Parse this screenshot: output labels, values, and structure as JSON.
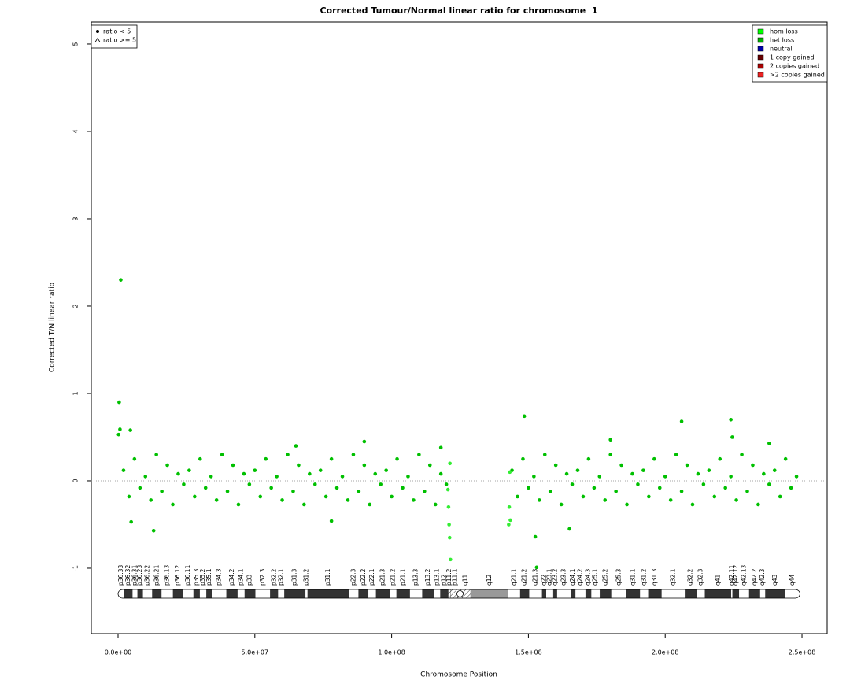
{
  "chart_data": {
    "type": "scatter",
    "title": "Corrected Tumour/Normal linear ratio for chromosome  1",
    "xlabel": "Chromosome Position",
    "ylabel": "Corrected T/N linear ratio",
    "xlim": [
      -9780000,
      259200000
    ],
    "ylim": [
      -1.748,
      5.252
    ],
    "xticks": [
      {
        "value": 0,
        "label": "0.0e+00"
      },
      {
        "value": 50000000,
        "label": "5.0e+07"
      },
      {
        "value": 100000000,
        "label": "1.0e+08"
      },
      {
        "value": 150000000,
        "label": "1.5e+08"
      },
      {
        "value": 200000000,
        "label": "2.0e+08"
      },
      {
        "value": 250000000,
        "label": "2.5e+08"
      }
    ],
    "yticks": [
      -1,
      0,
      1,
      2,
      3,
      4,
      5
    ],
    "hline": 0,
    "series": [
      {
        "color": "#00c000",
        "x": [
          2000000.0,
          4000000.0,
          6000000.0,
          8000000.0,
          10000000.0,
          12000000.0,
          14000000.0,
          16000000.0,
          18000000.0,
          20000000.0,
          22000000.0,
          24000000.0,
          26000000.0,
          28000000.0,
          30000000.0,
          32000000.0,
          34000000.0,
          36000000.0,
          38000000.0,
          40000000.0,
          42000000.0,
          44000000.0,
          46000000.0,
          48000000.0,
          50000000.0,
          52000000.0,
          54000000.0,
          56000000.0,
          58000000.0,
          60000000.0,
          62000000.0,
          64000000.0,
          66000000.0,
          68000000.0,
          70000000.0,
          72000000.0,
          74000000.0,
          76000000.0,
          78000000.0,
          80000000.0,
          82000000.0,
          84000000.0,
          86000000.0,
          88000000.0,
          90000000.0,
          92000000.0,
          94000000.0,
          96000000.0,
          98000000.0,
          100000000.0,
          102000000.0,
          104000000.0,
          106000000.0,
          108000000.0,
          110000000.0,
          112000000.0,
          114000000.0,
          116000000.0,
          118000000.0,
          120000000.0,
          144000000.0,
          146000000.0,
          148000000.0,
          150000000.0,
          152000000.0,
          154000000.0,
          156000000.0,
          158000000.0,
          160000000.0,
          162000000.0,
          164000000.0,
          166000000.0,
          168000000.0,
          170000000.0,
          172000000.0,
          174000000.0,
          176000000.0,
          178000000.0,
          180000000.0,
          182000000.0,
          184000000.0,
          186000000.0,
          188000000.0,
          190000000.0,
          192000000.0,
          194000000.0,
          196000000.0,
          198000000.0,
          200000000.0,
          202000000.0,
          204000000.0,
          206000000.0,
          208000000.0,
          210000000.0,
          212000000.0,
          214000000.0,
          216000000.0,
          218000000.0,
          220000000.0,
          222000000.0,
          224000000.0,
          226000000.0,
          228000000.0,
          230000000.0,
          232000000.0,
          234000000.0,
          236000000.0,
          238000000.0,
          240000000.0,
          242000000.0,
          244000000.0,
          246000000.0,
          248000000.0,
          1000000.0,
          400000.0,
          200000.0,
          700000.0,
          4500000.0,
          4800000.0,
          13000000.0,
          78000000.0,
          148500000.0,
          152500000.0,
          153000000.0,
          165000000.0,
          206000000.0,
          224000000.0,
          224500000.0,
          118000000.0,
          65000000.0,
          90000000.0,
          180000000.0,
          238000000.0
        ],
        "values": [
          0.12,
          -0.18,
          0.25,
          -0.08,
          0.05,
          -0.22,
          0.3,
          -0.12,
          0.18,
          -0.27,
          0.08,
          -0.04,
          0.12,
          -0.18,
          0.25,
          -0.08,
          0.05,
          -0.22,
          0.3,
          -0.12,
          0.18,
          -0.27,
          0.08,
          -0.04,
          0.12,
          -0.18,
          0.25,
          -0.08,
          0.05,
          -0.22,
          0.3,
          -0.12,
          0.18,
          -0.27,
          0.08,
          -0.04,
          0.12,
          -0.18,
          0.25,
          -0.08,
          0.05,
          -0.22,
          0.3,
          -0.12,
          0.18,
          -0.27,
          0.08,
          -0.04,
          0.12,
          -0.18,
          0.25,
          -0.08,
          0.05,
          -0.22,
          0.3,
          -0.12,
          0.18,
          -0.27,
          0.08,
          -0.04,
          0.12,
          -0.18,
          0.25,
          -0.08,
          0.05,
          -0.22,
          0.3,
          -0.12,
          0.18,
          -0.27,
          0.08,
          -0.04,
          0.12,
          -0.18,
          0.25,
          -0.08,
          0.05,
          -0.22,
          0.3,
          -0.12,
          0.18,
          -0.27,
          0.08,
          -0.04,
          0.12,
          -0.18,
          0.25,
          -0.08,
          0.05,
          -0.22,
          0.3,
          -0.12,
          0.18,
          -0.27,
          0.08,
          -0.04,
          0.12,
          -0.18,
          0.25,
          -0.08,
          0.05,
          -0.22,
          0.3,
          -0.12,
          0.18,
          -0.27,
          0.08,
          -0.04,
          0.12,
          -0.18,
          0.25,
          -0.08,
          0.05,
          2.3,
          0.9,
          0.53,
          0.59,
          0.58,
          -0.47,
          -0.57,
          -0.46,
          0.74,
          -0.64,
          -0.99,
          -0.55,
          0.68,
          0.7,
          0.5,
          0.38,
          0.4,
          0.45,
          0.47,
          0.43
        ]
      },
      {
        "color": "#33ee33",
        "x": [
          120600000.0,
          120800000.0,
          121000000.0,
          121200000.0,
          121300000.0,
          121500000.0,
          142800000.0,
          143000000.0,
          143200000.0,
          143400000.0
        ],
        "values": [
          -0.1,
          -0.3,
          -0.5,
          -0.65,
          0.2,
          -0.9,
          -0.5,
          -0.3,
          0.1,
          -0.45
        ]
      }
    ],
    "shape_legend": {
      "items": [
        {
          "label": "ratio < 5",
          "symbol": "circle"
        },
        {
          "label": "ratio >= 5",
          "symbol": "triangle"
        }
      ]
    },
    "state_legend": {
      "items": [
        {
          "label": "hom loss",
          "color": "#00ff00"
        },
        {
          "label": "het loss",
          "color": "#00b000"
        },
        {
          "label": "neutral",
          "color": "#0000aa"
        },
        {
          "label": "1 copy gained",
          "color": "#660000"
        },
        {
          "label": "2 copies gained",
          "color": "#aa0000"
        },
        {
          "label": ">2 copies gained",
          "color": "#ee2222"
        }
      ]
    },
    "ideogram": {
      "bands": [
        {
          "label": "p36.33",
          "start": 0,
          "end": 2300000.0,
          "stain": "gneg"
        },
        {
          "label": "p36.32",
          "start": 2300000.0,
          "end": 5300000.0,
          "stain": "gpos"
        },
        {
          "label": "p36.31",
          "start": 5300000.0,
          "end": 7100000.0,
          "stain": "gneg"
        },
        {
          "label": "p36.23",
          "start": 7100000.0,
          "end": 9100000.0,
          "stain": "gpos"
        },
        {
          "label": "p36.22",
          "start": 9100000.0,
          "end": 12500000.0,
          "stain": "gneg"
        },
        {
          "label": "p36.21",
          "start": 12500000.0,
          "end": 15900000.0,
          "stain": "gpos"
        },
        {
          "label": "p36.13",
          "start": 15900000.0,
          "end": 20100000.0,
          "stain": "gneg"
        },
        {
          "label": "p36.12",
          "start": 20100000.0,
          "end": 23600000.0,
          "stain": "gpos"
        },
        {
          "label": "p36.11",
          "start": 23600000.0,
          "end": 27600000.0,
          "stain": "gneg"
        },
        {
          "label": "p35.3",
          "start": 27600000.0,
          "end": 29900000.0,
          "stain": "gpos"
        },
        {
          "label": "p35.2",
          "start": 29900000.0,
          "end": 32300000.0,
          "stain": "gneg"
        },
        {
          "label": "p35.1",
          "start": 32300000.0,
          "end": 34300000.0,
          "stain": "gpos"
        },
        {
          "label": "p34.3",
          "start": 34300000.0,
          "end": 39600000.0,
          "stain": "gneg"
        },
        {
          "label": "p34.2",
          "start": 39600000.0,
          "end": 43700000.0,
          "stain": "gpos"
        },
        {
          "label": "p34.1",
          "start": 43700000.0,
          "end": 46300000.0,
          "stain": "gneg"
        },
        {
          "label": "p33",
          "start": 46300000.0,
          "end": 50200000.0,
          "stain": "gpos"
        },
        {
          "label": "p32.3",
          "start": 50200000.0,
          "end": 55600000.0,
          "stain": "gneg"
        },
        {
          "label": "p32.2",
          "start": 55600000.0,
          "end": 58500000.0,
          "stain": "gpos"
        },
        {
          "label": "p32.1",
          "start": 58500000.0,
          "end": 60800000.0,
          "stain": "gneg"
        },
        {
          "label": "p31.3",
          "start": 60800000.0,
          "end": 68500000.0,
          "stain": "gpos"
        },
        {
          "label": "p31.2",
          "start": 68500000.0,
          "end": 69300000.0,
          "stain": "gneg"
        },
        {
          "label": "p31.1",
          "start": 69300000.0,
          "end": 84400000.0,
          "stain": "gpos"
        },
        {
          "label": "p22.3",
          "start": 84400000.0,
          "end": 87900000.0,
          "stain": "gneg"
        },
        {
          "label": "p22.2",
          "start": 87900000.0,
          "end": 91500000.0,
          "stain": "gpos"
        },
        {
          "label": "p22.1",
          "start": 91500000.0,
          "end": 94300000.0,
          "stain": "gneg"
        },
        {
          "label": "p21.3",
          "start": 94300000.0,
          "end": 99300000.0,
          "stain": "gpos"
        },
        {
          "label": "p21.2",
          "start": 99300000.0,
          "end": 101800000.0,
          "stain": "gneg"
        },
        {
          "label": "p21.1",
          "start": 101800000.0,
          "end": 106700000.0,
          "stain": "gpos"
        },
        {
          "label": "p13.3",
          "start": 106700000.0,
          "end": 111200000.0,
          "stain": "gneg"
        },
        {
          "label": "p13.2",
          "start": 111200000.0,
          "end": 115500000.0,
          "stain": "gpos"
        },
        {
          "label": "p13.1",
          "start": 115500000.0,
          "end": 117800000.0,
          "stain": "gneg"
        },
        {
          "label": "p12",
          "start": 117800000.0,
          "end": 120700000.0,
          "stain": "gpos"
        },
        {
          "label": "p11.2",
          "start": 120700000.0,
          "end": 121500000.0,
          "stain": "acen"
        },
        {
          "label": "p11.1",
          "start": 121500000.0,
          "end": 125000000.0,
          "stain": "acen"
        },
        {
          "label": "q11",
          "start": 125000000.0,
          "end": 128900000.0,
          "stain": "acen"
        },
        {
          "label": "q12",
          "start": 128900000.0,
          "end": 142600000.0,
          "stain": "gvar"
        },
        {
          "label": "q21.1",
          "start": 142600000.0,
          "end": 147000000.0,
          "stain": "gneg"
        },
        {
          "label": "q21.2",
          "start": 147000000.0,
          "end": 150300000.0,
          "stain": "gpos"
        },
        {
          "label": "q21.3",
          "start": 150300000.0,
          "end": 155000000.0,
          "stain": "gneg"
        },
        {
          "label": "q22",
          "start": 155000000.0,
          "end": 156500000.0,
          "stain": "gpos"
        },
        {
          "label": "q23.1",
          "start": 156500000.0,
          "end": 159100000.0,
          "stain": "gneg"
        },
        {
          "label": "q23.2",
          "start": 159100000.0,
          "end": 160500000.0,
          "stain": "gpos"
        },
        {
          "label": "q23.3",
          "start": 160500000.0,
          "end": 165500000.0,
          "stain": "gneg"
        },
        {
          "label": "q24.1",
          "start": 165500000.0,
          "end": 167200000.0,
          "stain": "gpos"
        },
        {
          "label": "q24.2",
          "start": 167200000.0,
          "end": 170900000.0,
          "stain": "gneg"
        },
        {
          "label": "q24.3",
          "start": 170900000.0,
          "end": 173000000.0,
          "stain": "gpos"
        },
        {
          "label": "q25.1",
          "start": 173000000.0,
          "end": 176100000.0,
          "stain": "gneg"
        },
        {
          "label": "q25.2",
          "start": 176100000.0,
          "end": 180300000.0,
          "stain": "gpos"
        },
        {
          "label": "q25.3",
          "start": 180300000.0,
          "end": 185800000.0,
          "stain": "gneg"
        },
        {
          "label": "q31.1",
          "start": 185800000.0,
          "end": 190800000.0,
          "stain": "gpos"
        },
        {
          "label": "q31.2",
          "start": 190800000.0,
          "end": 193800000.0,
          "stain": "gneg"
        },
        {
          "label": "q31.3",
          "start": 193800000.0,
          "end": 198700000.0,
          "stain": "gpos"
        },
        {
          "label": "q32.1",
          "start": 198700000.0,
          "end": 207200000.0,
          "stain": "gneg"
        },
        {
          "label": "q32.2",
          "start": 207200000.0,
          "end": 211500000.0,
          "stain": "gpos"
        },
        {
          "label": "q32.3",
          "start": 211500000.0,
          "end": 214500000.0,
          "stain": "gneg"
        },
        {
          "label": "q41",
          "start": 214500000.0,
          "end": 224100000.0,
          "stain": "gpos"
        },
        {
          "label": "q42.11",
          "start": 224100000.0,
          "end": 224600000.0,
          "stain": "gneg"
        },
        {
          "label": "q42.12",
          "start": 224600000.0,
          "end": 227000000.0,
          "stain": "gpos"
        },
        {
          "label": "q42.13",
          "start": 227000000.0,
          "end": 230700000.0,
          "stain": "gneg"
        },
        {
          "label": "q42.2",
          "start": 230700000.0,
          "end": 234700000.0,
          "stain": "gpos"
        },
        {
          "label": "q42.3",
          "start": 234700000.0,
          "end": 236600000.0,
          "stain": "gneg"
        },
        {
          "label": "q43",
          "start": 236600000.0,
          "end": 243700000.0,
          "stain": "gpos"
        },
        {
          "label": "q44",
          "start": 243700000.0,
          "end": 249250000.0,
          "stain": "gneg"
        }
      ]
    }
  }
}
